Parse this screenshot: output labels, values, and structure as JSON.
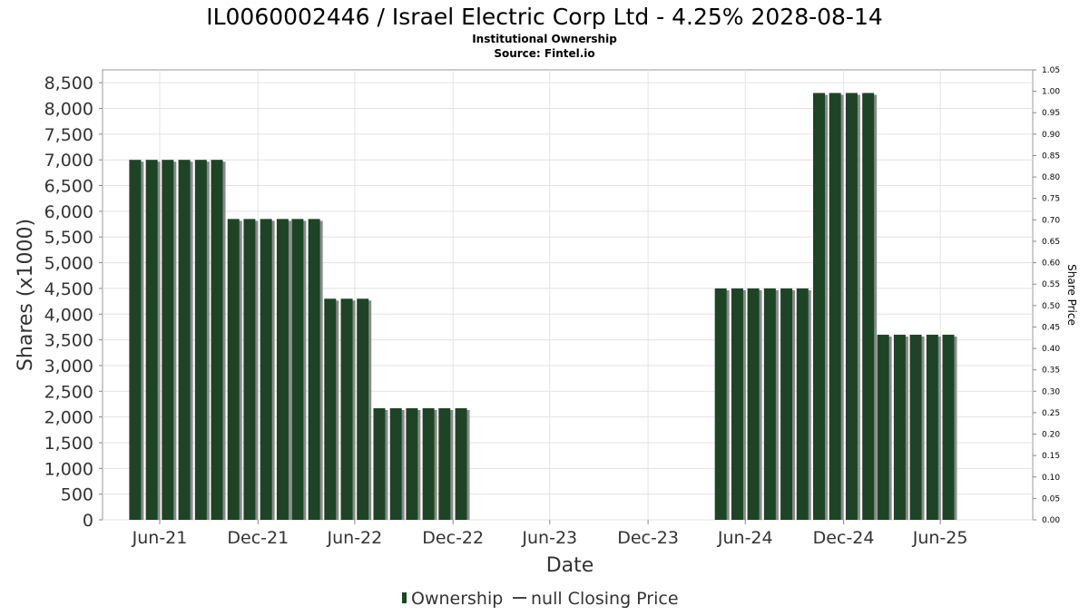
{
  "chart_data": {
    "type": "bar",
    "title": "IL0060002446 / Israel Electric Corp Ltd - 4.25% 2028-08-14",
    "subtitle": "Institutional Ownership",
    "source": "Source: Fintel.io",
    "xlabel": "Date",
    "ylabel": "Shares (x1000)",
    "y2label": "Share Price",
    "ylim": [
      0,
      8750
    ],
    "y2lim": [
      0,
      1.05
    ],
    "yticks": [
      "0",
      "500",
      "1,000",
      "1,500",
      "2,000",
      "2,500",
      "3,000",
      "3,500",
      "4,000",
      "4,500",
      "5,000",
      "5,500",
      "6,000",
      "6,500",
      "7,000",
      "7,500",
      "8,000",
      "8,500"
    ],
    "y2ticks": [
      "0.00",
      "0.05",
      "0.10",
      "0.15",
      "0.20",
      "0.25",
      "0.30",
      "0.35",
      "0.40",
      "0.45",
      "0.50",
      "0.55",
      "0.60",
      "0.65",
      "0.70",
      "0.75",
      "0.80",
      "0.85",
      "0.90",
      "0.95",
      "1.00",
      "1.05"
    ],
    "xlim": [
      "2021-03-15",
      "2025-12-20"
    ],
    "xticks": [
      {
        "label": "Jun-21",
        "date": "2021-06-30"
      },
      {
        "label": "Dec-21",
        "date": "2021-12-31"
      },
      {
        "label": "Jun-22",
        "date": "2022-06-30"
      },
      {
        "label": "Dec-22",
        "date": "2022-12-31"
      },
      {
        "label": "Jun-23",
        "date": "2023-06-30"
      },
      {
        "label": "Dec-23",
        "date": "2023-12-31"
      },
      {
        "label": "Jun-24",
        "date": "2024-06-30"
      },
      {
        "label": "Dec-24",
        "date": "2024-12-31"
      },
      {
        "label": "Jun-25",
        "date": "2025-06-30"
      }
    ],
    "grid": true,
    "legend_position": "bottom",
    "series": [
      {
        "name": "Ownership",
        "color": "#1e4426",
        "points": [
          {
            "date": "2021-05-15",
            "value": 7000
          },
          {
            "date": "2021-06-15",
            "value": 7000
          },
          {
            "date": "2021-07-15",
            "value": 7000
          },
          {
            "date": "2021-08-15",
            "value": 7000
          },
          {
            "date": "2021-09-15",
            "value": 7000
          },
          {
            "date": "2021-10-15",
            "value": 7000
          },
          {
            "date": "2021-11-15",
            "value": 5850
          },
          {
            "date": "2021-12-15",
            "value": 5850
          },
          {
            "date": "2022-01-15",
            "value": 5850
          },
          {
            "date": "2022-02-15",
            "value": 5850
          },
          {
            "date": "2022-03-15",
            "value": 5850
          },
          {
            "date": "2022-04-15",
            "value": 5850
          },
          {
            "date": "2022-05-15",
            "value": 4300
          },
          {
            "date": "2022-06-15",
            "value": 4300
          },
          {
            "date": "2022-07-15",
            "value": 4300
          },
          {
            "date": "2022-08-15",
            "value": 2170
          },
          {
            "date": "2022-09-15",
            "value": 2170
          },
          {
            "date": "2022-10-15",
            "value": 2170
          },
          {
            "date": "2022-11-15",
            "value": 2170
          },
          {
            "date": "2022-12-15",
            "value": 2170
          },
          {
            "date": "2023-01-15",
            "value": 2170
          },
          {
            "date": "2024-05-15",
            "value": 4500
          },
          {
            "date": "2024-06-15",
            "value": 4500
          },
          {
            "date": "2024-07-15",
            "value": 4500
          },
          {
            "date": "2024-08-15",
            "value": 4500
          },
          {
            "date": "2024-09-15",
            "value": 4500
          },
          {
            "date": "2024-10-15",
            "value": 4500
          },
          {
            "date": "2024-11-15",
            "value": 8300
          },
          {
            "date": "2024-12-15",
            "value": 8300
          },
          {
            "date": "2025-01-15",
            "value": 8300
          },
          {
            "date": "2025-02-15",
            "value": 8300
          },
          {
            "date": "2025-03-15",
            "value": 3600
          },
          {
            "date": "2025-04-15",
            "value": 3600
          },
          {
            "date": "2025-05-15",
            "value": 3600
          },
          {
            "date": "2025-06-15",
            "value": 3600
          },
          {
            "date": "2025-07-15",
            "value": 3600
          }
        ]
      },
      {
        "name": "null Closing Price",
        "color": "#444444",
        "points": []
      }
    ]
  }
}
